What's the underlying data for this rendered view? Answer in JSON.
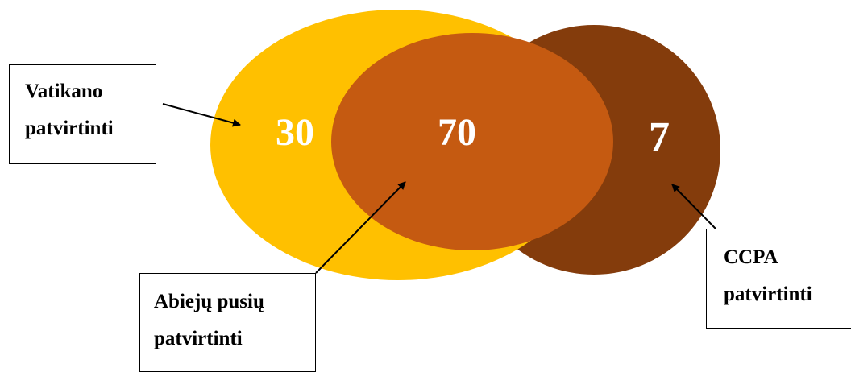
{
  "diagram": {
    "type": "venn",
    "colors": {
      "vatikano_only": "#FFC000",
      "overlap": "#C55A11",
      "ccpa_only": "#843C0C"
    },
    "regions": {
      "vatikano_only": "30",
      "both": "70",
      "ccpa_only": "7"
    },
    "labels": {
      "vatikano": [
        "Vatikano",
        "patvirtinti"
      ],
      "both": [
        "Abiejų pusių",
        "patvirtinti"
      ],
      "ccpa": [
        "CCPA",
        "patvirtinti"
      ]
    }
  }
}
